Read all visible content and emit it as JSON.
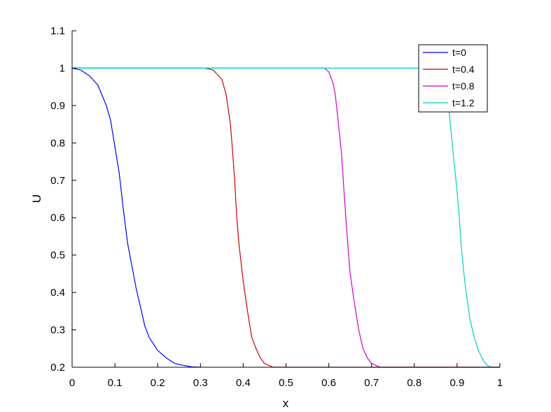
{
  "chart_data": {
    "type": "line",
    "title": "",
    "xlabel": "x",
    "ylabel": "U",
    "xlim": [
      0,
      1
    ],
    "ylim": [
      0.2,
      1.1
    ],
    "xticks": [
      0,
      0.1,
      0.2,
      0.3,
      0.4,
      0.5,
      0.6,
      0.7,
      0.8,
      0.9,
      1
    ],
    "xtick_labels": [
      "0",
      "0.1",
      "0.2",
      "0.3",
      "0.4",
      "0.5",
      "0.6",
      "0.7",
      "0.8",
      "0.9",
      "1"
    ],
    "yticks": [
      0.2,
      0.3,
      0.4,
      0.5,
      0.6,
      0.7,
      0.8,
      0.9,
      1,
      1.1
    ],
    "ytick_labels": [
      "0.2",
      "0.3",
      "0.4",
      "0.5",
      "0.6",
      "0.7",
      "0.8",
      "0.9",
      "1",
      "1.1"
    ],
    "grid": false,
    "legend_position": "top-right",
    "series": [
      {
        "name": "t=0",
        "color": "#0000ff",
        "x": [
          0,
          0.02,
          0.04,
          0.06,
          0.08,
          0.09,
          0.1,
          0.11,
          0.12,
          0.13,
          0.14,
          0.15,
          0.16,
          0.17,
          0.18,
          0.2,
          0.22,
          0.24,
          0.26,
          0.28,
          0.3
        ],
        "y": [
          1.0,
          0.995,
          0.98,
          0.955,
          0.9,
          0.86,
          0.79,
          0.72,
          0.62,
          0.53,
          0.47,
          0.41,
          0.36,
          0.31,
          0.28,
          0.245,
          0.225,
          0.21,
          0.205,
          0.201,
          0.2
        ]
      },
      {
        "name": "t=0.4",
        "color": "#cc0000",
        "x": [
          0,
          0.31,
          0.33,
          0.35,
          0.36,
          0.37,
          0.375,
          0.38,
          0.385,
          0.39,
          0.4,
          0.41,
          0.42,
          0.43,
          0.44,
          0.45,
          0.47,
          0.5,
          1
        ],
        "y": [
          1,
          1,
          0.995,
          0.97,
          0.93,
          0.85,
          0.78,
          0.7,
          0.6,
          0.53,
          0.43,
          0.35,
          0.28,
          0.25,
          0.225,
          0.21,
          0.2,
          0.2,
          0.2
        ]
      },
      {
        "name": "t=0.8",
        "color": "#cc00cc",
        "x": [
          0,
          0.59,
          0.6,
          0.61,
          0.615,
          0.62,
          0.63,
          0.635,
          0.64,
          0.645,
          0.65,
          0.66,
          0.67,
          0.68,
          0.69,
          0.7,
          0.72,
          1
        ],
        "y": [
          1,
          1,
          0.99,
          0.96,
          0.93,
          0.88,
          0.77,
          0.68,
          0.6,
          0.52,
          0.45,
          0.37,
          0.3,
          0.25,
          0.225,
          0.21,
          0.2,
          0.2
        ]
      },
      {
        "name": "t=1.2",
        "color": "#00cccc",
        "x": [
          0,
          0.85,
          0.87,
          0.875,
          0.88,
          0.89,
          0.9,
          0.905,
          0.91,
          0.915,
          0.92,
          0.93,
          0.94,
          0.95,
          0.96,
          0.97,
          0.98,
          1
        ],
        "y": [
          1,
          1,
          0.97,
          0.94,
          0.9,
          0.78,
          0.67,
          0.6,
          0.52,
          0.46,
          0.41,
          0.33,
          0.28,
          0.245,
          0.22,
          0.205,
          0.2,
          0.2
        ]
      }
    ]
  }
}
